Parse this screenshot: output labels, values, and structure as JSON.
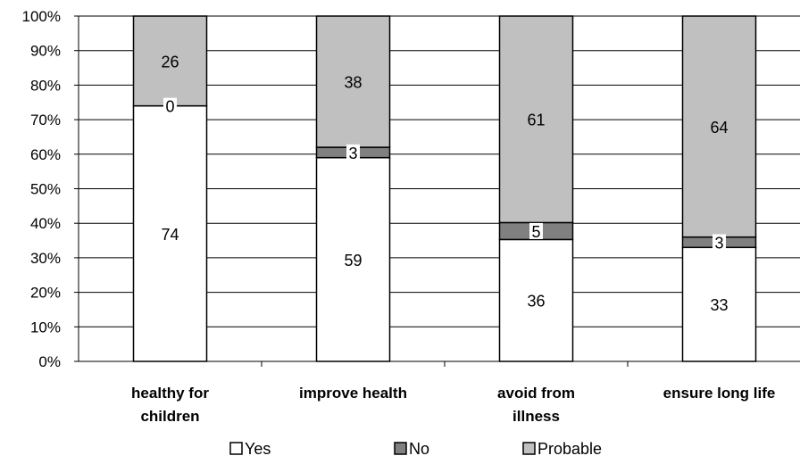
{
  "chart_data": {
    "type": "bar",
    "stacked": true,
    "percent_stacked": true,
    "categories": [
      [
        "healthy for",
        "children"
      ],
      [
        "improve health"
      ],
      [
        "avoid from",
        "illness"
      ],
      [
        "ensure long life"
      ]
    ],
    "series": [
      {
        "name": "Yes",
        "values": [
          74,
          59,
          36,
          33
        ],
        "color": "#ffffff"
      },
      {
        "name": "No",
        "values": [
          0,
          3,
          5,
          3
        ],
        "color": "#808080"
      },
      {
        "name": "Probable",
        "values": [
          26,
          38,
          61,
          64
        ],
        "color": "#c0c0c0"
      }
    ],
    "y_ticks": [
      "0%",
      "10%",
      "20%",
      "30%",
      "40%",
      "50%",
      "60%",
      "70%",
      "80%",
      "90%",
      "100%"
    ],
    "ylim": [
      0,
      100
    ],
    "grid": true,
    "legend_position": "bottom"
  }
}
